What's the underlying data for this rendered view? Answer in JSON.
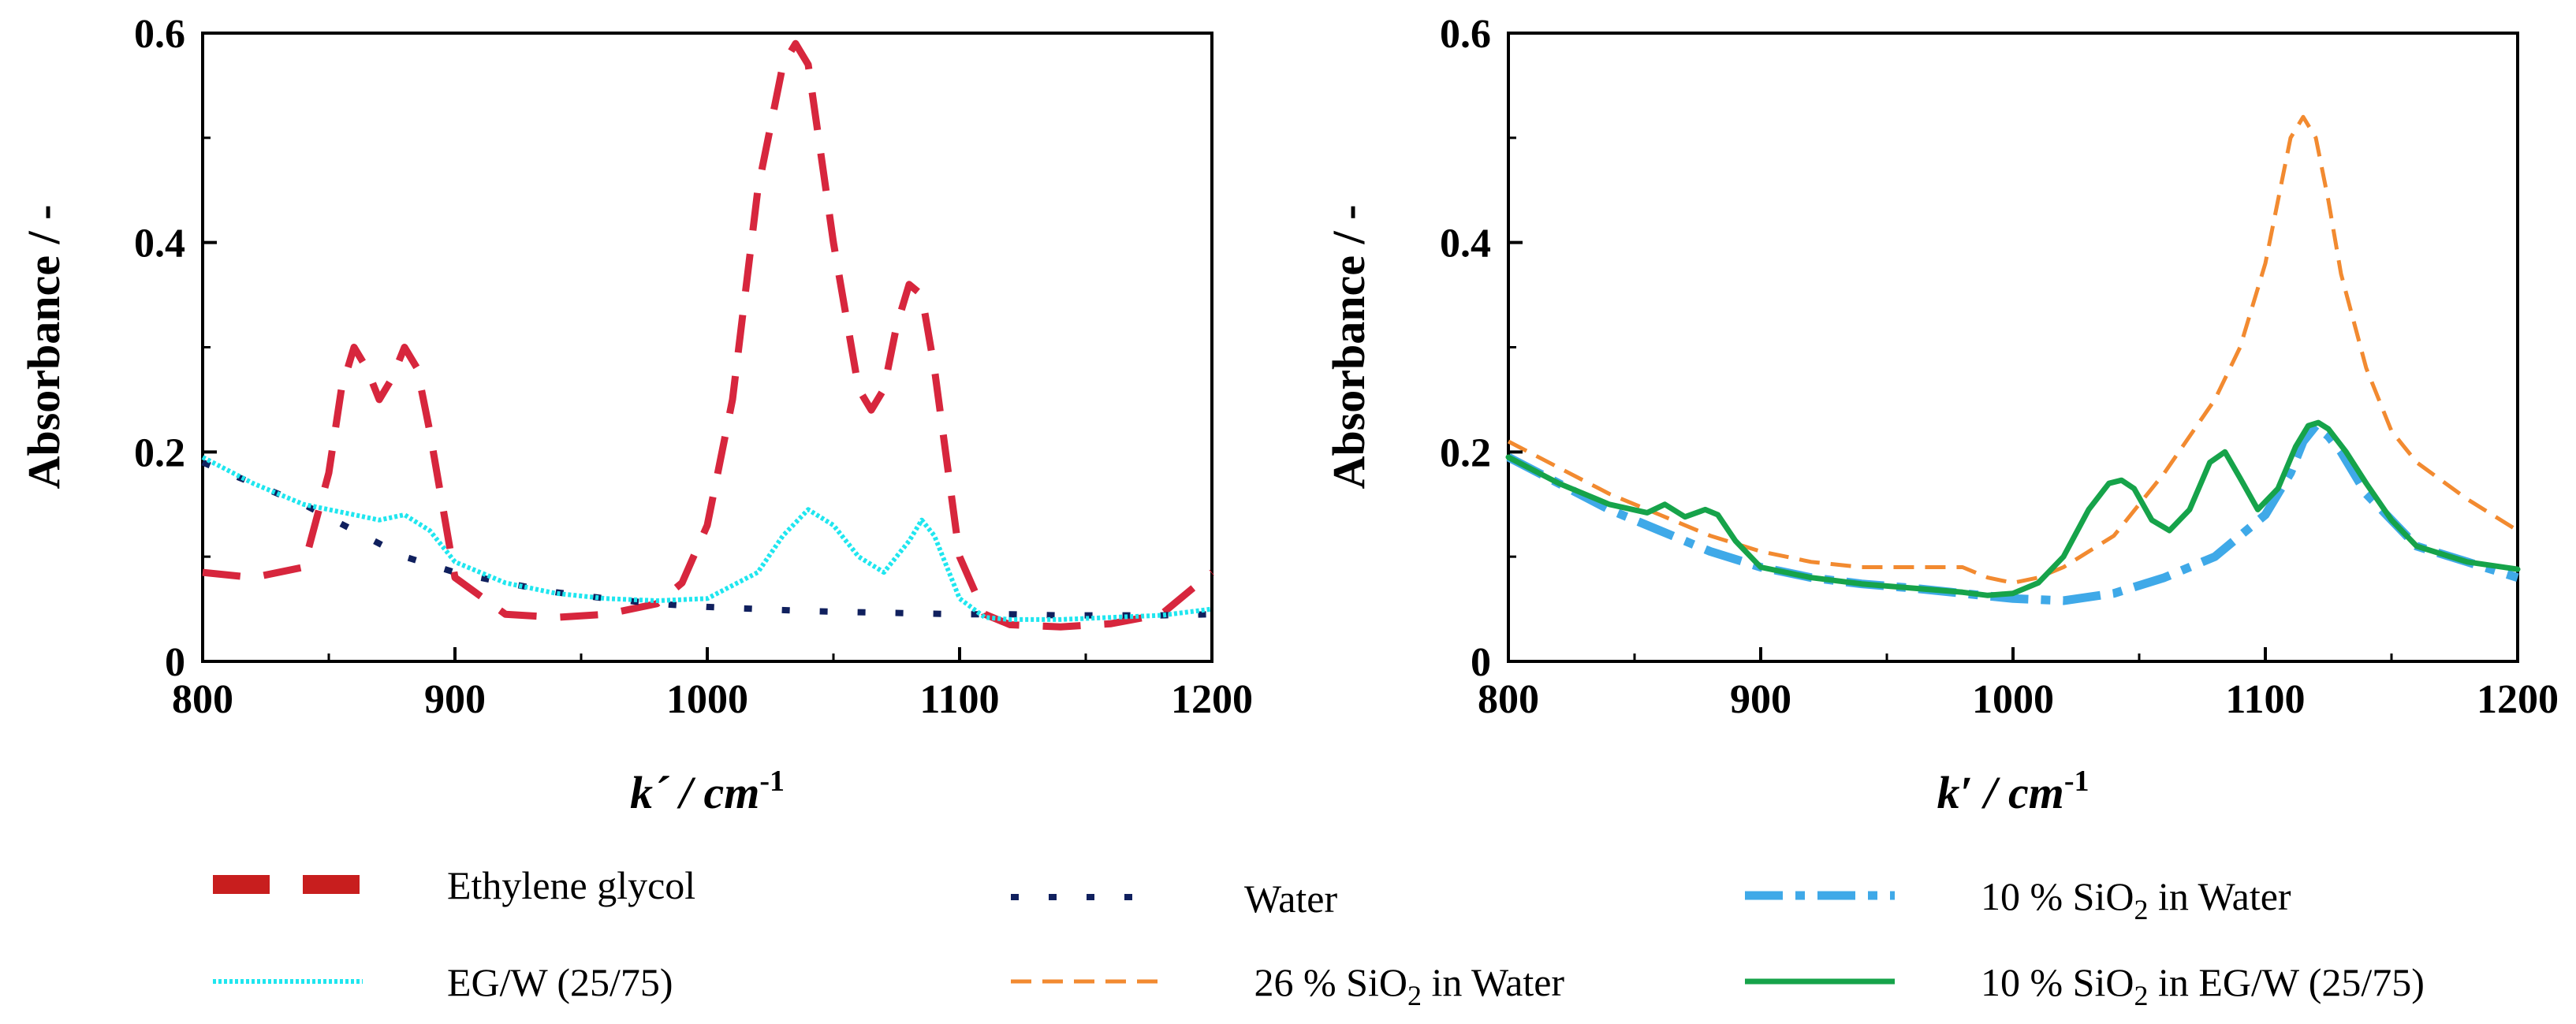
{
  "chart_data": [
    {
      "type": "line",
      "title": "",
      "xlabel": "k´ / cm",
      "xlabel_sup": "-1",
      "ylabel": "Absorbance / -",
      "xlim": [
        800,
        1200
      ],
      "ylim": [
        0,
        0.6
      ],
      "xticks": [
        "800",
        "900",
        "1000",
        "1100",
        "1200"
      ],
      "yticks": [
        "0",
        "0.2",
        "0.4",
        "0.6"
      ],
      "series": [
        {
          "name": "Ethylene glycol",
          "color": "#d7263d",
          "style": "dash-long",
          "x": [
            800,
            820,
            840,
            850,
            855,
            860,
            865,
            870,
            875,
            880,
            885,
            890,
            900,
            920,
            940,
            960,
            980,
            990,
            1000,
            1010,
            1020,
            1030,
            1035,
            1040,
            1050,
            1060,
            1065,
            1070,
            1075,
            1080,
            1085,
            1090,
            1100,
            1110,
            1120,
            1140,
            1160,
            1180,
            1200
          ],
          "y": [
            0.085,
            0.08,
            0.09,
            0.18,
            0.26,
            0.3,
            0.28,
            0.25,
            0.27,
            0.3,
            0.28,
            0.22,
            0.08,
            0.045,
            0.042,
            0.045,
            0.055,
            0.075,
            0.13,
            0.25,
            0.45,
            0.57,
            0.59,
            0.57,
            0.4,
            0.26,
            0.24,
            0.26,
            0.32,
            0.36,
            0.35,
            0.28,
            0.1,
            0.045,
            0.035,
            0.033,
            0.036,
            0.045,
            0.085
          ]
        },
        {
          "name": "Water",
          "color": "#10205e",
          "style": "dot-square",
          "x": [
            800,
            820,
            840,
            860,
            880,
            900,
            920,
            940,
            960,
            980,
            1000,
            1020,
            1040,
            1060,
            1080,
            1100,
            1120,
            1140,
            1160,
            1180,
            1200
          ],
          "y": [
            0.19,
            0.17,
            0.15,
            0.125,
            0.1,
            0.085,
            0.075,
            0.066,
            0.06,
            0.055,
            0.052,
            0.05,
            0.048,
            0.047,
            0.046,
            0.045,
            0.045,
            0.044,
            0.044,
            0.044,
            0.045
          ]
        },
        {
          "name": "EG/W (25/75)",
          "color": "#1fe6ef",
          "style": "dot-fine",
          "x": [
            800,
            820,
            840,
            860,
            870,
            880,
            890,
            900,
            920,
            940,
            960,
            980,
            1000,
            1020,
            1030,
            1040,
            1050,
            1060,
            1070,
            1080,
            1085,
            1090,
            1100,
            1110,
            1120,
            1140,
            1160,
            1180,
            1200
          ],
          "y": [
            0.195,
            0.17,
            0.15,
            0.14,
            0.135,
            0.14,
            0.125,
            0.095,
            0.075,
            0.065,
            0.06,
            0.058,
            0.06,
            0.085,
            0.12,
            0.145,
            0.13,
            0.1,
            0.085,
            0.115,
            0.135,
            0.12,
            0.06,
            0.042,
            0.04,
            0.04,
            0.042,
            0.044,
            0.05
          ]
        }
      ]
    },
    {
      "type": "line",
      "title": "",
      "xlabel": "k′ / cm",
      "xlabel_sup": "-1",
      "ylabel": "Absorbance / -",
      "xlim": [
        800,
        1200
      ],
      "ylim": [
        0,
        0.6
      ],
      "xticks": [
        "800",
        "900",
        "1000",
        "1100",
        "1200"
      ],
      "yticks": [
        "0",
        "0.2",
        "0.4",
        "0.6"
      ],
      "series": [
        {
          "name": "26 % SiO2 in Water",
          "color": "#f28a30",
          "style": "dash-medium",
          "x": [
            800,
            820,
            840,
            860,
            880,
            900,
            920,
            940,
            960,
            980,
            990,
            1000,
            1010,
            1020,
            1040,
            1060,
            1080,
            1090,
            1100,
            1105,
            1110,
            1115,
            1120,
            1125,
            1130,
            1140,
            1150,
            1160,
            1180,
            1200
          ],
          "y": [
            0.21,
            0.185,
            0.16,
            0.14,
            0.12,
            0.105,
            0.095,
            0.09,
            0.09,
            0.09,
            0.08,
            0.075,
            0.08,
            0.09,
            0.12,
            0.18,
            0.25,
            0.3,
            0.38,
            0.44,
            0.5,
            0.52,
            0.5,
            0.44,
            0.37,
            0.28,
            0.22,
            0.19,
            0.155,
            0.125
          ]
        },
        {
          "name": "10 % SiO2 in Water",
          "color": "#3fa9e8",
          "style": "dash-dot",
          "x": [
            800,
            820,
            840,
            860,
            880,
            900,
            920,
            940,
            960,
            980,
            1000,
            1020,
            1040,
            1060,
            1080,
            1100,
            1110,
            1115,
            1120,
            1125,
            1130,
            1140,
            1160,
            1180,
            1200
          ],
          "y": [
            0.195,
            0.17,
            0.145,
            0.125,
            0.105,
            0.09,
            0.08,
            0.074,
            0.07,
            0.065,
            0.06,
            0.058,
            0.065,
            0.08,
            0.1,
            0.14,
            0.18,
            0.21,
            0.225,
            0.215,
            0.2,
            0.16,
            0.11,
            0.095,
            0.08
          ]
        },
        {
          "name": "10 % SiO2 in EG/W (25/75)",
          "color": "#16a34a",
          "style": "solid",
          "x": [
            800,
            820,
            840,
            855,
            862,
            870,
            878,
            883,
            890,
            900,
            920,
            940,
            960,
            980,
            990,
            1000,
            1010,
            1020,
            1030,
            1038,
            1043,
            1048,
            1055,
            1062,
            1070,
            1078,
            1084,
            1090,
            1097,
            1105,
            1112,
            1117,
            1121,
            1125,
            1132,
            1140,
            1150,
            1160,
            1180,
            1200
          ],
          "y": [
            0.195,
            0.17,
            0.15,
            0.142,
            0.15,
            0.138,
            0.145,
            0.14,
            0.115,
            0.09,
            0.08,
            0.074,
            0.07,
            0.066,
            0.063,
            0.065,
            0.075,
            0.1,
            0.145,
            0.17,
            0.173,
            0.165,
            0.135,
            0.125,
            0.145,
            0.19,
            0.2,
            0.175,
            0.145,
            0.165,
            0.205,
            0.225,
            0.228,
            0.222,
            0.2,
            0.17,
            0.135,
            0.11,
            0.095,
            0.088
          ]
        }
      ]
    }
  ],
  "legend": [
    {
      "label": "Ethylene glycol",
      "color": "#c81e1e",
      "style": "legend-dash-thick"
    },
    {
      "label": "EG/W (25/75)",
      "color": "#1fe6ef",
      "style": "dot-fine"
    },
    {
      "label": "Water",
      "color": "#10205e",
      "style": "dot-square"
    },
    {
      "label": " 26 % SiO",
      "sub": "2",
      "tail": " in Water",
      "color": "#f28a30",
      "style": "dash-medium"
    },
    {
      "label": "10 % SiO",
      "sub": "2",
      "tail": " in Water",
      "color": "#3fa9e8",
      "style": "dash-dot"
    },
    {
      "label": "10 % SiO",
      "sub": "2",
      "tail": " in EG/W (25/75)",
      "color": "#16a34a",
      "style": "solid"
    }
  ]
}
